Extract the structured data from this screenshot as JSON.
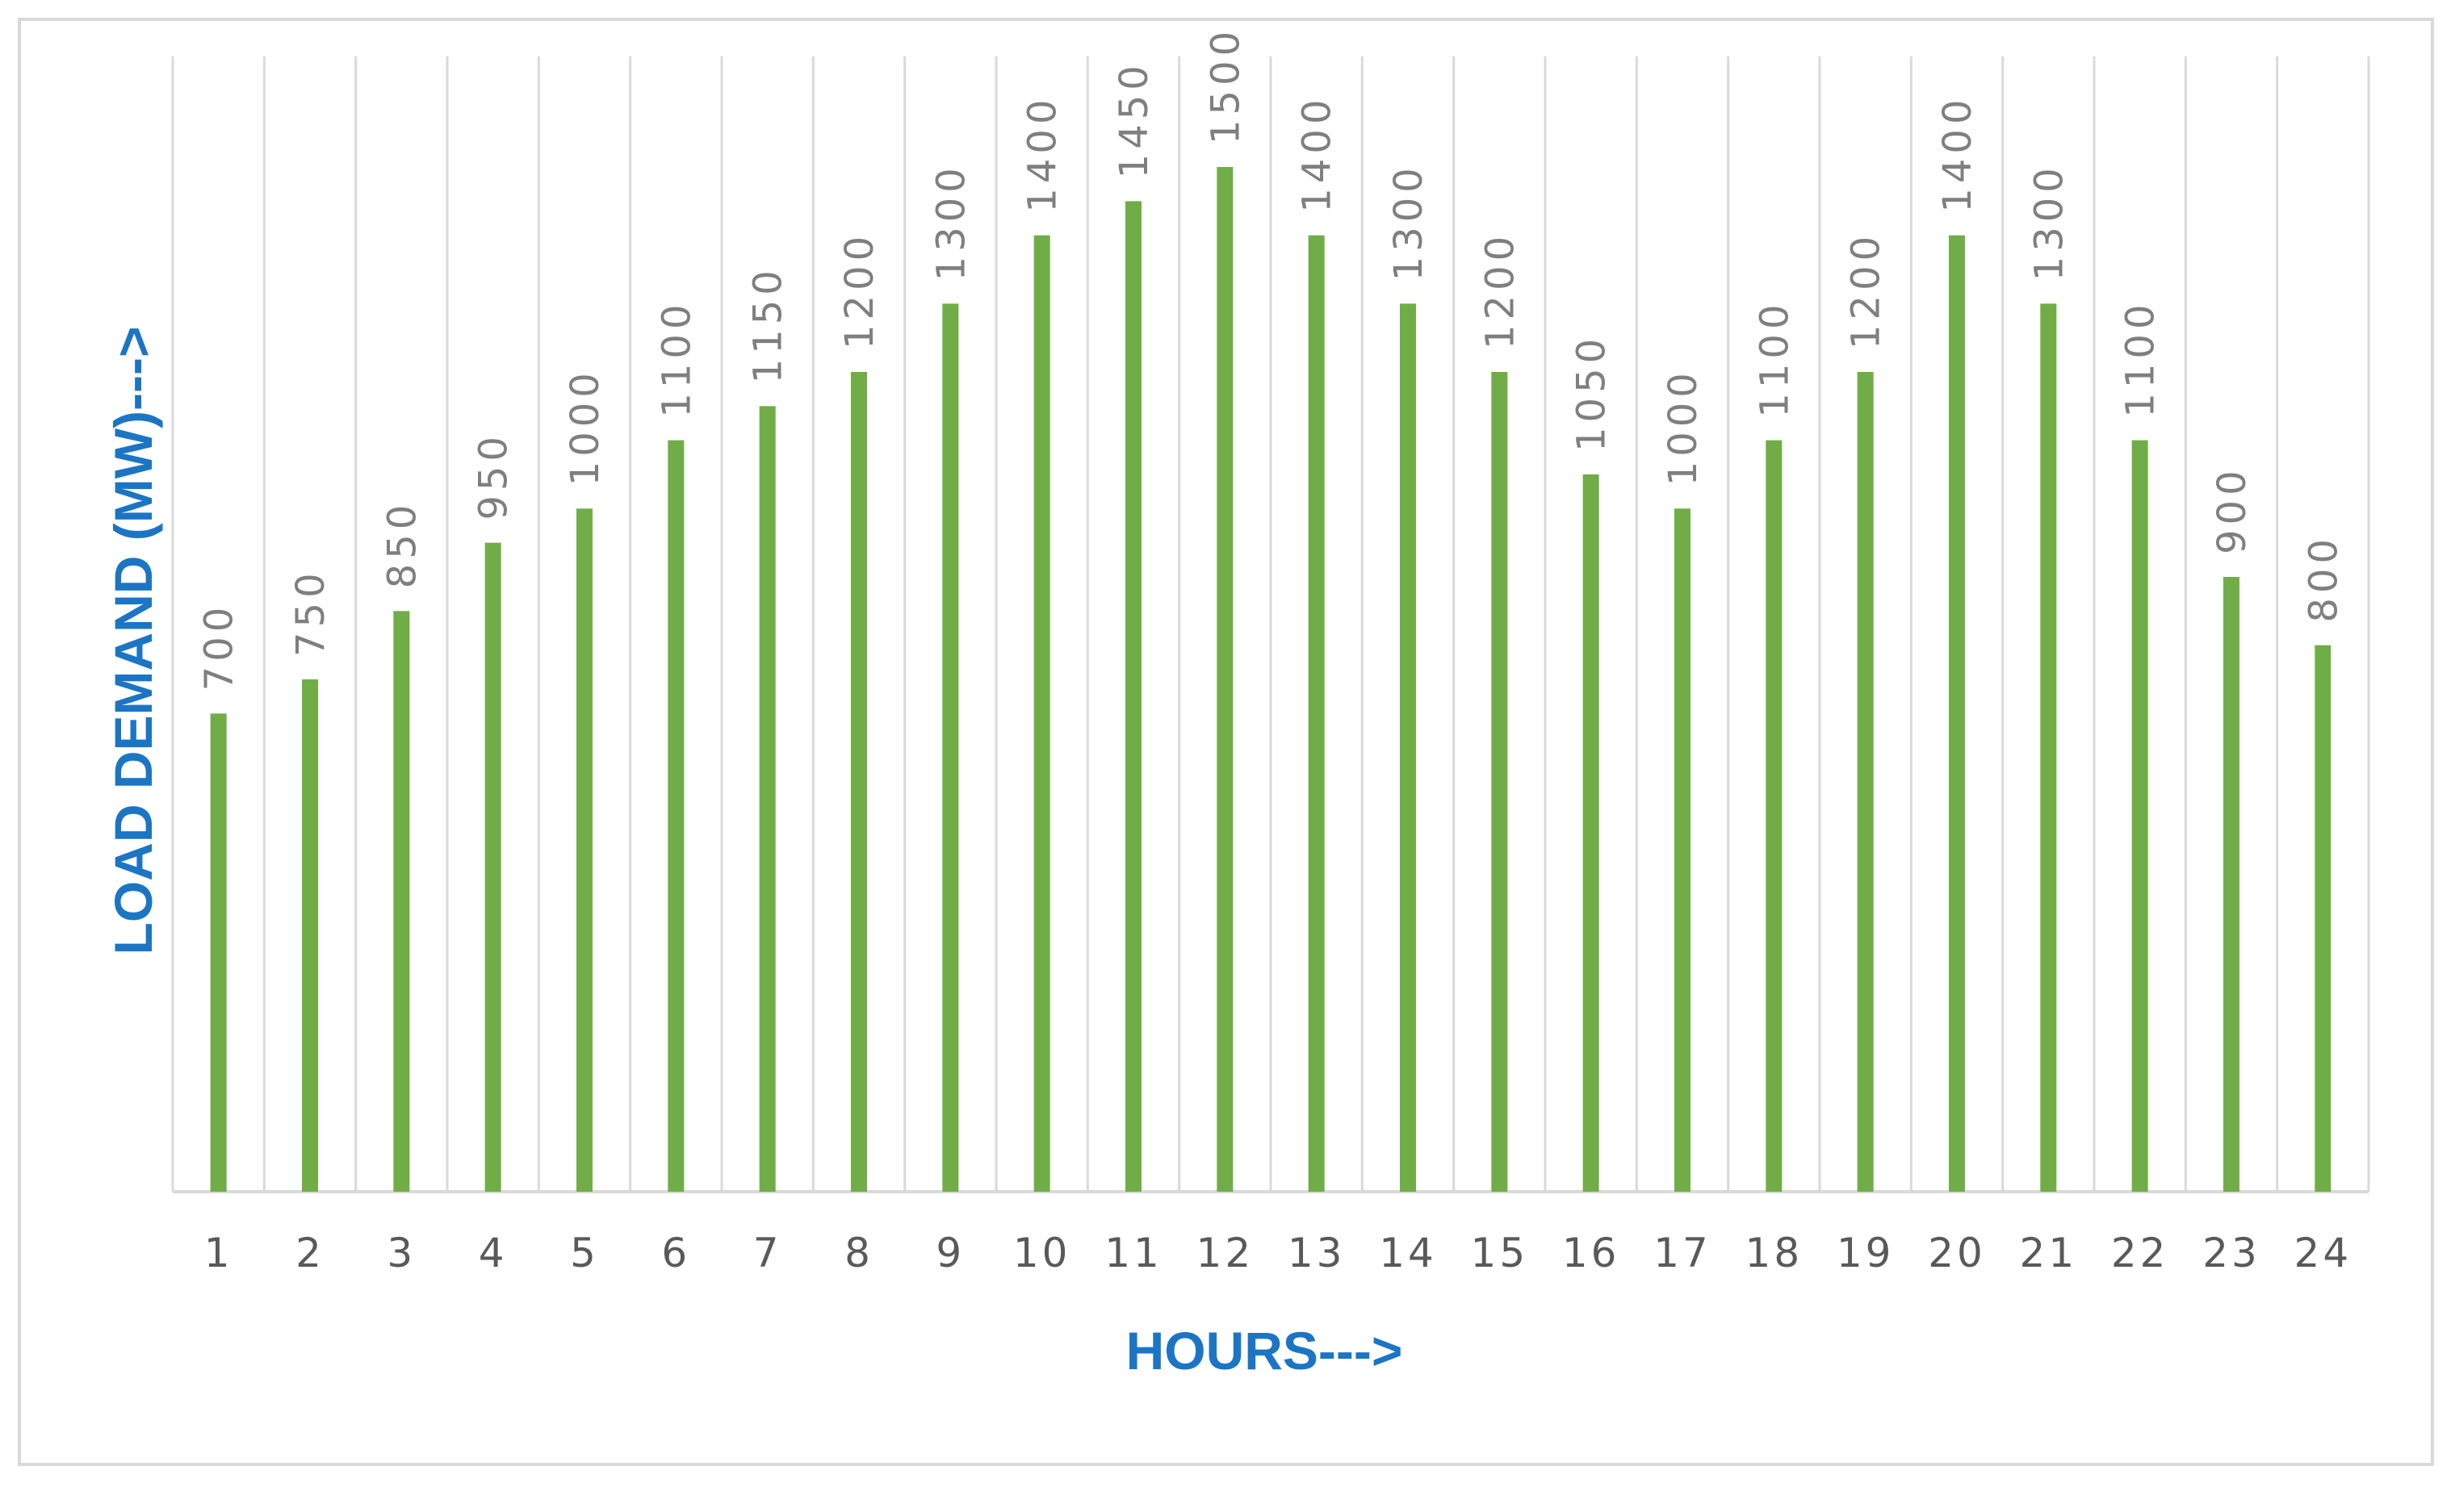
{
  "chart_data": {
    "type": "bar",
    "categories": [
      "1",
      "2",
      "3",
      "4",
      "5",
      "6",
      "7",
      "8",
      "9",
      "10",
      "11",
      "12",
      "13",
      "14",
      "15",
      "16",
      "17",
      "18",
      "19",
      "20",
      "21",
      "22",
      "23",
      "24"
    ],
    "values": [
      700,
      750,
      850,
      950,
      1000,
      1100,
      1150,
      1200,
      1300,
      1400,
      1450,
      1500,
      1400,
      1300,
      1200,
      1050,
      1000,
      1100,
      1200,
      1400,
      1300,
      1100,
      900,
      800
    ],
    "data_labels": [
      "700",
      "750",
      "850",
      "950",
      "1000",
      "1100",
      "1150",
      "1200",
      "1300",
      "1400",
      "1450",
      "1500",
      "1400",
      "1300",
      "1200",
      "1050",
      "1000",
      "1100",
      "1200",
      "1400",
      "1300",
      "1100",
      "900",
      "800"
    ],
    "title": "",
    "xlabel": "HOURS--->",
    "ylabel": "LOAD DEMAND (MW)--->",
    "ylim": [
      0,
      1650
    ],
    "grid": "vertical",
    "legend": "none",
    "colors": {
      "bar": "#70ad47",
      "axis_title": "#1c75c4",
      "gridline": "#d9d9d9",
      "tick_label": "#595959",
      "data_label": "#7f7f7f"
    }
  }
}
